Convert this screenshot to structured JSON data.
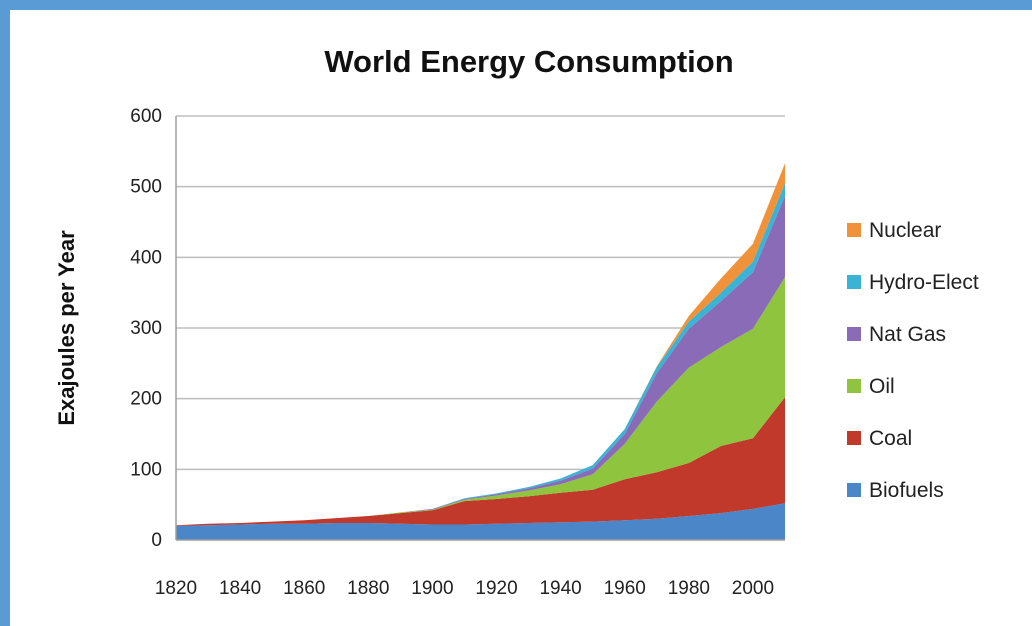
{
  "chart_data": {
    "type": "area",
    "stacked": true,
    "title": "World Energy Consumption",
    "xlabel": "",
    "ylabel": "Exajoules per Year",
    "xlim": [
      1820,
      2010
    ],
    "ylim": [
      0,
      600
    ],
    "xticks": [
      1820,
      1840,
      1860,
      1880,
      1900,
      1920,
      1940,
      1960,
      1980,
      2000
    ],
    "yticks": [
      0,
      100,
      200,
      300,
      400,
      500,
      600
    ],
    "grid": true,
    "legend_position": "right",
    "x": [
      1820,
      1830,
      1840,
      1850,
      1860,
      1870,
      1880,
      1890,
      1900,
      1910,
      1920,
      1930,
      1940,
      1950,
      1960,
      1970,
      1980,
      1990,
      2000,
      2010
    ],
    "series": [
      {
        "name": "Biofuels",
        "color": "#4a86c8",
        "values": [
          20,
          21,
          22,
          23,
          23,
          24,
          24,
          23,
          22,
          22,
          23,
          24,
          25,
          26,
          28,
          30,
          34,
          38,
          44,
          52
        ]
      },
      {
        "name": "Coal",
        "color": "#c0392b",
        "values": [
          1,
          2,
          2,
          3,
          5,
          7,
          10,
          15,
          20,
          33,
          35,
          38,
          42,
          45,
          58,
          66,
          75,
          95,
          100,
          150
        ]
      },
      {
        "name": "Oil",
        "color": "#8fc43e",
        "values": [
          0,
          0,
          0,
          0,
          0,
          0,
          0,
          1,
          1,
          2,
          5,
          8,
          12,
          22,
          50,
          100,
          135,
          140,
          155,
          170
        ]
      },
      {
        "name": "Nat Gas",
        "color": "#8a6bb8",
        "values": [
          0,
          0,
          0,
          0,
          0,
          0,
          0,
          0,
          1,
          1,
          2,
          3,
          5,
          8,
          14,
          40,
          55,
          65,
          80,
          115
        ]
      },
      {
        "name": "Hydro-Elect",
        "color": "#3bb3d4",
        "values": [
          0,
          0,
          0,
          0,
          0,
          0,
          0,
          0,
          0,
          1,
          1,
          2,
          3,
          5,
          7,
          9,
          10,
          12,
          15,
          18
        ]
      },
      {
        "name": "Nuclear",
        "color": "#f0923a",
        "values": [
          0,
          0,
          0,
          0,
          0,
          0,
          0,
          0,
          0,
          0,
          0,
          0,
          0,
          0,
          0,
          1,
          8,
          20,
          25,
          28
        ]
      }
    ]
  }
}
